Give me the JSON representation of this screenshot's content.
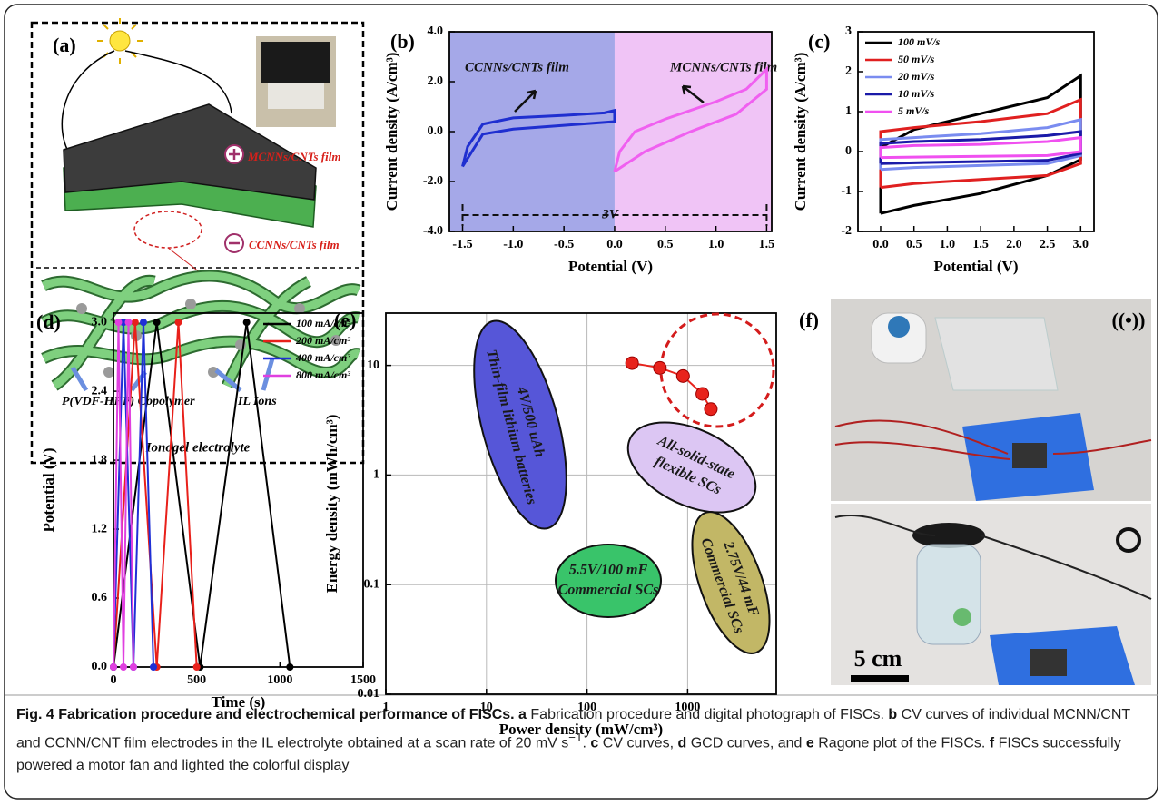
{
  "panel_a": {
    "label": "(a)",
    "top_film": "MCNNs/CNTs film",
    "bottom_film": "CCNNs/CNTs film",
    "polymer": "P(VDF-HFP) Copolymer",
    "ions": "IL Ions",
    "electrolyte": "Ionogel electrolyte"
  },
  "chart_data": [
    {
      "type": "line",
      "label": "(b)",
      "x_label": "Potential (V)",
      "y_label": "Current density (A/cm³)",
      "xlim": [
        -1.63,
        1.55
      ],
      "ylim": [
        -4,
        4
      ],
      "xticks": [
        -1.5,
        {
          "value": -1.0,
          "label": "-1.0"
        },
        -0.5,
        {
          "value": 0,
          "label": "0.0"
        },
        0.5,
        {
          "value": 1.0,
          "label": "1.0"
        },
        1.5
      ],
      "yticks": [
        {
          "value": 4,
          "label": "4.0"
        },
        {
          "value": 2,
          "label": "2.0"
        },
        {
          "value": 0,
          "label": "0.0"
        },
        {
          "value": -2,
          "label": "-2.0"
        },
        {
          "value": -4,
          "label": "-4.0"
        }
      ],
      "annotations": [
        "CCNNs/CNTs film",
        "MCNNs/CNTs film",
        "3V"
      ],
      "series": [
        {
          "color": "#1f2fd0",
          "x": [
            -1.5,
            -1.45,
            -1.3,
            -1.0,
            -0.5,
            -0.1,
            0,
            0,
            -0.5,
            -1.0,
            -1.3,
            -1.5
          ],
          "values": [
            -1.4,
            -0.6,
            0.3,
            0.55,
            0.65,
            0.75,
            0.85,
            0.4,
            0.25,
            0.1,
            -0.1,
            -1.4
          ]
        },
        {
          "color": "#f060f0",
          "x": [
            0,
            0.3,
            0.75,
            1.2,
            1.5,
            1.5,
            1.3,
            1.0,
            0.5,
            0.2,
            0.05,
            0
          ],
          "values": [
            -1.6,
            -0.8,
            0.0,
            0.7,
            1.7,
            2.5,
            1.7,
            1.2,
            0.5,
            0.0,
            -0.8,
            -1.6
          ]
        }
      ]
    },
    {
      "type": "line",
      "label": "(c)",
      "x_label": "Potential (V)",
      "y_label": "Current density (A/cm³)",
      "xlim": [
        -0.34,
        3.2
      ],
      "ylim": [
        -2,
        3
      ],
      "xticks": [
        {
          "value": 0,
          "label": "0.0"
        },
        0.5,
        {
          "value": 1.0,
          "label": "1.0"
        },
        1.5,
        {
          "value": 2.0,
          "label": "2.0"
        },
        2.5,
        {
          "value": 3.0,
          "label": "3.0"
        }
      ],
      "yticks": [
        3,
        2,
        1,
        0,
        -1,
        -2
      ],
      "legend": "upper left",
      "x": [
        0,
        0.5,
        1.5,
        2.5,
        3.0,
        3.0,
        2.5,
        1.5,
        0.5,
        0,
        0
      ],
      "series": [
        {
          "name": "100 mV/s",
          "color": "#000000",
          "values": [
            -1.55,
            -1.35,
            -1.05,
            -0.6,
            -0.2,
            1.9,
            1.35,
            0.95,
            0.55,
            0.1,
            -1.55
          ]
        },
        {
          "name": "50 mV/s",
          "color": "#e02020",
          "values": [
            -0.9,
            -0.8,
            -0.7,
            -0.6,
            -0.3,
            1.3,
            0.95,
            0.75,
            0.6,
            0.5,
            -0.9
          ]
        },
        {
          "name": "20 mV/s",
          "color": "#7a8cf0",
          "values": [
            -0.45,
            -0.4,
            -0.35,
            -0.3,
            -0.1,
            0.8,
            0.6,
            0.45,
            0.35,
            0.3,
            -0.45
          ]
        },
        {
          "name": "10 mV/s",
          "color": "#1a1aa8",
          "values": [
            -0.3,
            -0.28,
            -0.25,
            -0.22,
            -0.05,
            0.5,
            0.4,
            0.3,
            0.25,
            0.2,
            -0.3
          ]
        },
        {
          "name": "5 mV/s",
          "color": "#f050f0",
          "values": [
            -0.15,
            -0.14,
            -0.12,
            -0.1,
            0,
            0.35,
            0.25,
            0.18,
            0.15,
            0.1,
            -0.15
          ]
        }
      ]
    },
    {
      "type": "line",
      "label": "(d)",
      "x_label": "Time (s)",
      "y_label": "Potential (V)",
      "xlim": [
        0,
        1500
      ],
      "ylim": [
        0,
        3.08
      ],
      "markers": true,
      "xticks": [
        0,
        500,
        1000,
        1500
      ],
      "yticks": [
        {
          "value": 0,
          "label": "0.0"
        },
        0.6,
        1.2,
        1.8,
        2.4,
        {
          "value": 3,
          "label": "3.0"
        }
      ],
      "legend": "upper right",
      "series": [
        {
          "name": "100 mA/cm³",
          "color": "#000000",
          "x": [
            0,
            260,
            520,
            800,
            1060
          ],
          "values": [
            0,
            3,
            0,
            3,
            0
          ]
        },
        {
          "name": "200 mA/cm³",
          "color": "#e8201a",
          "x": [
            0,
            130,
            260,
            390,
            500
          ],
          "values": [
            0,
            3,
            0,
            3,
            0
          ]
        },
        {
          "name": "400 mA/cm³",
          "color": "#1f2fd6",
          "x": [
            0,
            60,
            120,
            180,
            240
          ],
          "values": [
            0,
            3,
            0,
            3,
            0
          ]
        },
        {
          "name": "800 mA/cm³",
          "color": "#e040e0",
          "x": [
            0,
            30,
            60,
            90,
            120
          ],
          "values": [
            0,
            3,
            0,
            3,
            0
          ]
        }
      ]
    },
    {
      "type": "line",
      "label": "(e)",
      "x_label": "Power density (mW/cm³)",
      "y_label": "Energy density (mWh/cm³)",
      "xlim": [
        1,
        7600
      ],
      "ylim": [
        0.01,
        30
      ],
      "log_x": true,
      "log_y": true,
      "grid": true,
      "markers": true,
      "xticks": [
        1,
        10,
        100,
        1000
      ],
      "yticks": [
        10,
        1,
        0.1,
        0.01
      ],
      "annotations": [
        [
          "4V/500 uAh",
          "Thin-film lithium batteries"
        ],
        [
          "All-solid-state",
          "flexible SCs"
        ],
        [
          "5.5V/100 mF",
          "Commercial SCs"
        ],
        [
          "2.75V/44 mF",
          "Commercial SCs"
        ]
      ],
      "series": [
        {
          "color": "#e8231c",
          "x": [
            280,
            530,
            900,
            1400,
            1700
          ],
          "values": [
            10.5,
            9.5,
            8,
            5.5,
            4
          ]
        }
      ]
    }
  ],
  "panel_f": {
    "label": "(f)",
    "scale_bar": "5 cm"
  },
  "caption": {
    "segments": [
      "Fig. 4 Fabrication procedure and electrochemical performance of FISCs.",
      "a",
      "Fabrication procedure and digital photograph of FISCs.",
      "b",
      "CV curves of individual MCNN/CNT and CCNN/CNT film electrodes in the IL electrolyte obtained at a scan rate of 20 mV s",
      "−1",
      ".",
      "c",
      "CV curves,",
      "d",
      "GCD curves, and",
      "e",
      "Ragone plot of the FISCs.",
      "f",
      "FISCs successfully powered a motor fan and lighted the colorful display"
    ]
  }
}
